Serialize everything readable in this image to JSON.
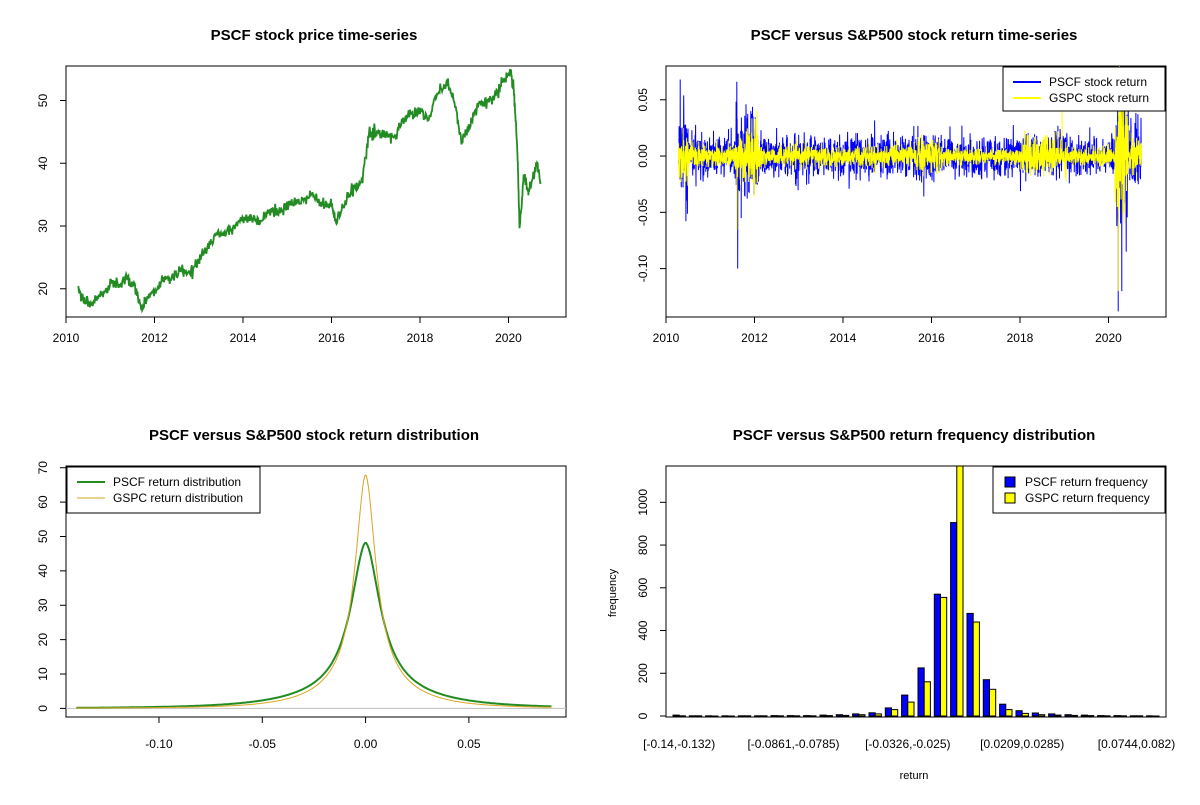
{
  "colors": {
    "pscf_line": "#228B22",
    "pscf_return": "#0000FF",
    "gspc_return": "#FFFF00",
    "gspc_density": "#DAA520",
    "hist_pscf": "#0000FF",
    "hist_gspc": "#FFFF00",
    "axis": "#000000"
  },
  "chart_data": [
    {
      "id": "price",
      "type": "line",
      "title": "PSCF stock price time-series",
      "xlabel": "",
      "ylabel": "",
      "xlim": [
        2010.0,
        2021.3
      ],
      "ylim": [
        15.5,
        55.5
      ],
      "xticks": [
        2010,
        2012,
        2014,
        2016,
        2018,
        2020
      ],
      "yticks": [
        20,
        30,
        40,
        50
      ],
      "grid": false,
      "series": [
        {
          "color": "#228B22",
          "x": [
            2010.28,
            2010.4,
            2010.55,
            2010.7,
            2010.85,
            2011.0,
            2011.2,
            2011.4,
            2011.55,
            2011.7,
            2011.85,
            2012.0,
            2012.2,
            2012.4,
            2012.6,
            2012.8,
            2013.0,
            2013.2,
            2013.4,
            2013.6,
            2013.8,
            2014.0,
            2014.2,
            2014.4,
            2014.6,
            2014.8,
            2015.0,
            2015.2,
            2015.4,
            2015.6,
            2015.8,
            2016.0,
            2016.1,
            2016.3,
            2016.5,
            2016.7,
            2016.85,
            2017.0,
            2017.2,
            2017.4,
            2017.6,
            2017.8,
            2018.0,
            2018.2,
            2018.4,
            2018.6,
            2018.75,
            2018.95,
            2019.1,
            2019.3,
            2019.5,
            2019.7,
            2019.9,
            2020.05,
            2020.12,
            2020.2,
            2020.25,
            2020.35,
            2020.45,
            2020.55,
            2020.65,
            2020.73
          ],
          "y": [
            20.0,
            18.2,
            17.5,
            18.5,
            19.5,
            20.8,
            21.0,
            21.3,
            20.5,
            16.8,
            18.8,
            19.5,
            21.5,
            22.0,
            23.0,
            22.6,
            24.5,
            26.8,
            28.5,
            29.0,
            30.0,
            31.5,
            31.2,
            30.8,
            32.5,
            32.0,
            33.5,
            34.0,
            34.2,
            35.0,
            33.2,
            33.5,
            30.5,
            33.5,
            36.0,
            37.5,
            45.0,
            44.5,
            44.8,
            44.0,
            46.5,
            48.0,
            48.5,
            47.0,
            51.5,
            52.5,
            50.5,
            43.5,
            46.0,
            49.0,
            49.5,
            51.0,
            53.5,
            54.0,
            52.0,
            42.0,
            30.0,
            38.0,
            35.5,
            37.5,
            40.0,
            37.0
          ]
        }
      ]
    },
    {
      "id": "returns",
      "type": "line",
      "title": "PSCF versus S&P500 stock return time-series",
      "xlabel": "",
      "ylabel": "",
      "xlim": [
        2010.0,
        2021.3
      ],
      "ylim": [
        -0.143,
        0.08
      ],
      "xticks": [
        2010,
        2012,
        2014,
        2016,
        2018,
        2020
      ],
      "yticks": [
        -0.1,
        -0.05,
        0.0,
        0.05
      ],
      "ytick_labels": [
        "-0.10",
        "-0.05",
        "0.00",
        "0.05"
      ],
      "legend": "top-right",
      "volatility_regimes": [
        {
          "x0": 2010.28,
          "x1": 2010.5,
          "pscf": 0.04,
          "gspc": 0.022
        },
        {
          "x0": 2010.5,
          "x1": 2011.55,
          "pscf": 0.02,
          "gspc": 0.012
        },
        {
          "x0": 2011.55,
          "x1": 2012.1,
          "pscf": 0.04,
          "gspc": 0.03
        },
        {
          "x0": 2012.1,
          "x1": 2015.6,
          "pscf": 0.02,
          "gspc": 0.01
        },
        {
          "x0": 2015.6,
          "x1": 2016.2,
          "pscf": 0.024,
          "gspc": 0.018
        },
        {
          "x0": 2016.2,
          "x1": 2018.0,
          "pscf": 0.018,
          "gspc": 0.008
        },
        {
          "x0": 2018.0,
          "x1": 2019.05,
          "pscf": 0.022,
          "gspc": 0.018
        },
        {
          "x0": 2019.05,
          "x1": 2020.15,
          "pscf": 0.018,
          "gspc": 0.009
        },
        {
          "x0": 2020.15,
          "x1": 2020.45,
          "pscf": 0.07,
          "gspc": 0.05
        },
        {
          "x0": 2020.45,
          "x1": 2020.75,
          "pscf": 0.03,
          "gspc": 0.018
        }
      ],
      "series": [
        {
          "name": "PSCF stock return",
          "color": "#0000FF",
          "extremes": [
            {
              "x": 2010.32,
              "y": 0.068
            },
            {
              "x": 2010.45,
              "y": -0.058
            },
            {
              "x": 2011.6,
              "y": 0.066
            },
            {
              "x": 2011.62,
              "y": -0.1
            },
            {
              "x": 2011.7,
              "y": -0.055
            },
            {
              "x": 2020.22,
              "y": -0.138
            },
            {
              "x": 2020.25,
              "y": 0.075
            },
            {
              "x": 2020.3,
              "y": -0.12
            },
            {
              "x": 2020.4,
              "y": -0.085
            }
          ]
        },
        {
          "name": "GSPC stock return",
          "color": "#FFFF00",
          "extremes": [
            {
              "x": 2011.6,
              "y": -0.066
            },
            {
              "x": 2018.95,
              "y": 0.05
            },
            {
              "x": 2020.22,
              "y": -0.12
            },
            {
              "x": 2020.25,
              "y": 0.09
            }
          ]
        }
      ]
    },
    {
      "id": "density",
      "type": "line",
      "title": "PSCF versus S&P500 stock return distribution",
      "xlabel": "",
      "ylabel": "",
      "xlim": [
        -0.145,
        0.097
      ],
      "ylim": [
        -2.5,
        70.5
      ],
      "xticks": [
        -0.1,
        -0.05,
        0.0,
        0.05
      ],
      "xtick_labels": [
        "-0.10",
        "-0.05",
        "0.00",
        "0.05"
      ],
      "yticks": [
        0,
        10,
        20,
        30,
        40,
        50,
        60,
        70
      ],
      "legend": "top-left",
      "baseline_color": "#BEBEBE",
      "series": [
        {
          "name": "PSCF return distribution",
          "color": "#228B22",
          "x_range": [
            -0.14,
            0.09
          ],
          "peak": 48,
          "scale": 0.0085,
          "tail": 0.9
        },
        {
          "name": "GSPC return distribution",
          "color": "#DAA520",
          "x_range": [
            -0.14,
            0.09
          ],
          "peak": 68,
          "scale": 0.006,
          "tail": 0.5
        }
      ]
    },
    {
      "id": "histogram",
      "type": "bar",
      "title": "PSCF versus S&P500 return frequency distribution",
      "xlabel": "return",
      "ylabel": "frequency",
      "ylim": [
        0,
        1170
      ],
      "yticks": [
        0,
        200,
        400,
        600,
        800,
        1000
      ],
      "legend": "top-right",
      "bins": 30,
      "tick_labels": [
        "[-0.14,-0.132)",
        "[-0.0861,-0.0785)",
        "[-0.0326,-0.025)",
        "[0.0209,0.0285)",
        "[0.0744,0.082)"
      ],
      "tick_bins": [
        0,
        7,
        14,
        21,
        28
      ],
      "series": [
        {
          "name": "PSCF return frequency",
          "color": "#0000FF",
          "values": [
            4,
            1,
            1,
            1,
            1,
            1,
            2,
            2,
            2,
            4,
            6,
            10,
            15,
            38,
            98,
            225,
            570,
            905,
            480,
            170,
            55,
            25,
            14,
            10,
            6,
            4,
            2,
            2,
            1,
            1
          ]
        },
        {
          "name": "GSPC return frequency",
          "color": "#FFFF00",
          "values": [
            1,
            1,
            0,
            0,
            1,
            1,
            1,
            1,
            1,
            2,
            3,
            6,
            10,
            30,
            65,
            160,
            555,
            1200,
            440,
            125,
            30,
            12,
            6,
            4,
            3,
            2,
            1,
            1,
            1,
            0
          ]
        }
      ]
    }
  ]
}
